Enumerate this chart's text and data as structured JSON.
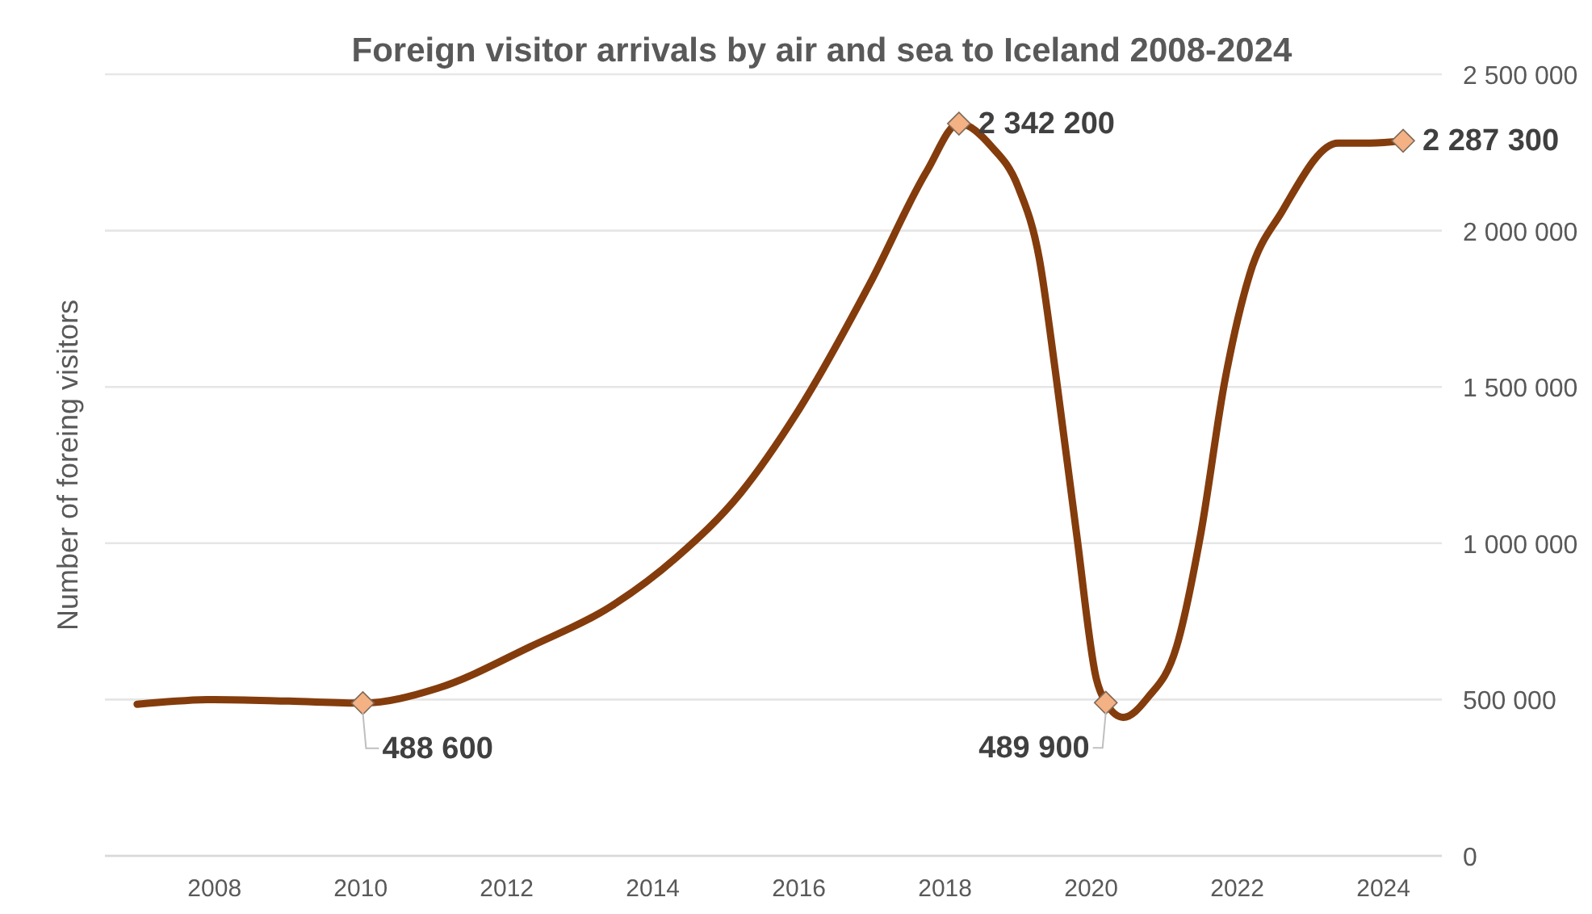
{
  "chart_data": {
    "type": "line",
    "title": "Foreign visitor arrivals by air and sea to Iceland 2008-2024",
    "ylabel": "Number of foreing visitors",
    "x": [
      2006.94,
      2008,
      2009.02,
      2010.03,
      2011.05,
      2012.33,
      2013.44,
      2014.32,
      2015.2,
      2015.98,
      2016.97,
      2017.75,
      2018.19,
      2018.63,
      2019.0,
      2019.29,
      2019.51,
      2019.8,
      2020.07,
      2020.2,
      2020.44,
      2020.77,
      2021.17,
      2021.5,
      2021.83,
      2022.17,
      2022.61,
      2023.38,
      2023.82,
      2024.27
    ],
    "series": [
      {
        "color": "#843c0c",
        "marker": "none",
        "values": [
          485000,
          500000,
          495000,
          488600,
          536000,
          670000,
          800000,
          954000,
          1160000,
          1420000,
          1830000,
          2190000,
          2342200,
          2270000,
          2140000,
          1910000,
          1550000,
          1030000,
          567000,
          489900,
          443000,
          505000,
          670000,
          1030000,
          1520000,
          1860000,
          2060000,
          2280000,
          2280000,
          2287300
        ]
      },
      {
        "type": "scatter",
        "color": "#f4b183",
        "marker": "diamond",
        "x": [
          2010.03,
          2018.19,
          2020.2,
          2024.27
        ],
        "values": [
          488600,
          2342200,
          489900,
          2287300
        ],
        "value_labels": [
          "488 600",
          "2 342 200",
          "489 900",
          "2 287 300"
        ]
      }
    ],
    "xlim": [
      2006.5,
      2024.8
    ],
    "xticks": [
      2008,
      2010,
      2012,
      2014,
      2016,
      2018,
      2020,
      2022,
      2024
    ],
    "ylim": [
      0,
      2500000
    ],
    "yticks": [
      {
        "value": 0,
        "label": "0"
      },
      {
        "value": 500000,
        "label": "500 000"
      },
      {
        "value": 1000000,
        "label": "1 000 000"
      },
      {
        "value": 1500000,
        "label": "1 500 000"
      },
      {
        "value": 2000000,
        "label": "2 000 000"
      },
      {
        "value": 2500000,
        "label": "2 500 000"
      }
    ],
    "grid": "y",
    "line_style": "solid"
  }
}
